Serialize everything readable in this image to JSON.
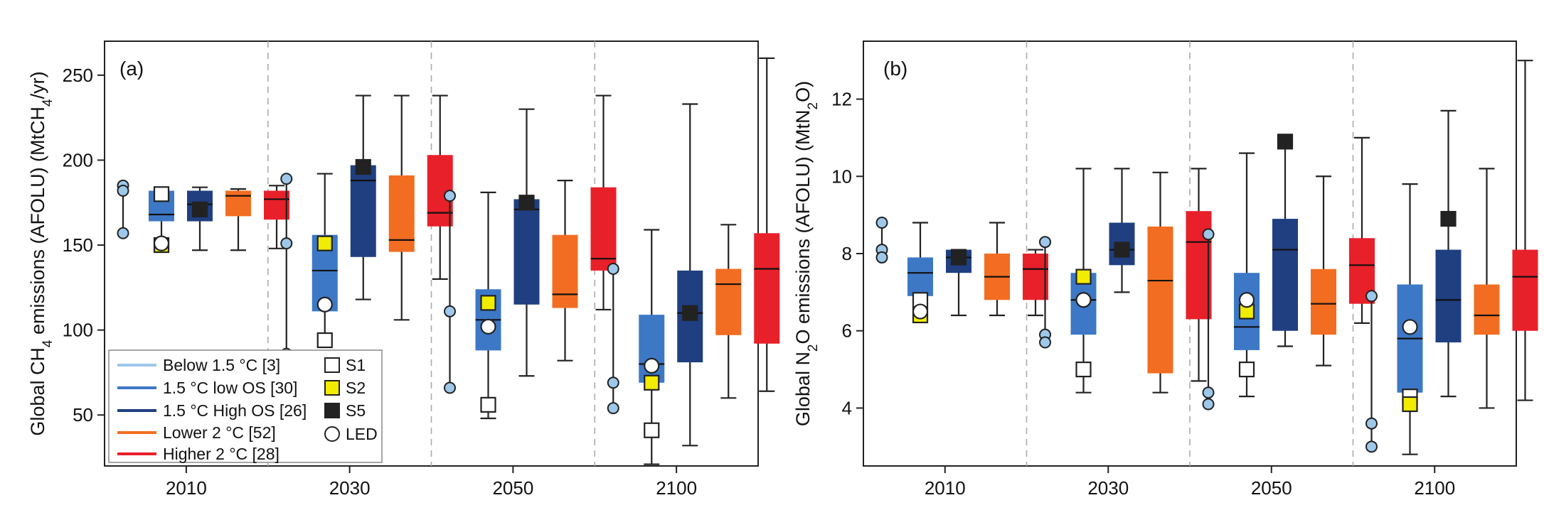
{
  "legend": {
    "series": [
      {
        "label": "Below 1.5 °C [3]",
        "color": "#9dc8ea"
      },
      {
        "label": "1.5 °C low OS [30]",
        "color": "#3d78c6"
      },
      {
        "label": "1.5 °C High OS [26]",
        "color": "#1f3f80"
      },
      {
        "label": "Lower  2 °C [52]",
        "color": "#f26d21"
      },
      {
        "label": "Higher  2 °C [28]",
        "color": "#e8202a"
      }
    ],
    "markers": [
      {
        "label": "S1",
        "marker": "square-open"
      },
      {
        "label": "S2",
        "marker": "square-yellow"
      },
      {
        "label": "S5",
        "marker": "square-black"
      },
      {
        "label": "LED",
        "marker": "circle-open"
      }
    ]
  },
  "chart_data": [
    {
      "type": "box",
      "panel_label": "(a)",
      "ylabel": "Global CH4 emissions (AFOLU) (MtCH4/yr)",
      "ylim": [
        20,
        270
      ],
      "yticks": [
        50,
        100,
        150,
        200,
        250
      ],
      "categories": [
        "2010",
        "2030",
        "2050",
        "2100"
      ],
      "series_order": [
        "Below 1.5 °C [3]",
        "1.5 °C low OS [30]",
        "1.5 °C High OS [26]",
        "Lower  2 °C [52]",
        "Higher  2 °C [28]"
      ],
      "groups": [
        {
          "year": "2010",
          "below15_points": [
            185,
            182,
            157
          ],
          "boxes": [
            {
              "series": "1.5 °C low OS [30]",
              "min": 150,
              "q1": 164,
              "median": 168,
              "q3": 182,
              "max": 182
            },
            {
              "series": "1.5 °C High OS [26]",
              "min": 147,
              "q1": 164,
              "median": 174,
              "q3": 182,
              "max": 184
            },
            {
              "series": "Lower  2 °C [52]",
              "min": 147,
              "q1": 167,
              "median": 179,
              "q3": 182,
              "max": 183
            },
            {
              "series": "Higher  2 °C [28]",
              "min": 148,
              "q1": 165,
              "median": 177,
              "q3": 182,
              "max": 185
            }
          ],
          "markers": [
            {
              "marker": "S1",
              "series": "1.5 °C low OS [30]",
              "value": 180
            },
            {
              "marker": "S2",
              "series": "1.5 °C low OS [30]",
              "value": 150
            },
            {
              "marker": "S5",
              "series": "1.5 °C High OS [26]",
              "value": 171
            },
            {
              "marker": "LED",
              "series": "1.5 °C low OS [30]",
              "value": 151
            }
          ]
        },
        {
          "year": "2030",
          "below15_points": [
            189,
            151,
            86
          ],
          "boxes": [
            {
              "series": "1.5 °C low OS [30]",
              "min": 93,
              "q1": 111,
              "median": 135,
              "q3": 156,
              "max": 192
            },
            {
              "series": "1.5 °C High OS [26]",
              "min": 118,
              "q1": 143,
              "median": 188,
              "q3": 197,
              "max": 238
            },
            {
              "series": "Lower  2 °C [52]",
              "min": 106,
              "q1": 146,
              "median": 153,
              "q3": 191,
              "max": 238
            },
            {
              "series": "Higher  2 °C [28]",
              "min": 130,
              "q1": 161,
              "median": 169,
              "q3": 203,
              "max": 238
            }
          ],
          "markers": [
            {
              "marker": "S1",
              "series": "1.5 °C low OS [30]",
              "value": 94
            },
            {
              "marker": "S2",
              "series": "1.5 °C low OS [30]",
              "value": 151
            },
            {
              "marker": "S5",
              "series": "1.5 °C High OS [26]",
              "value": 196
            },
            {
              "marker": "LED",
              "series": "1.5 °C low OS [30]",
              "value": 115
            }
          ]
        },
        {
          "year": "2050",
          "below15_points": [
            179,
            111,
            66
          ],
          "boxes": [
            {
              "series": "1.5 °C low OS [30]",
              "min": 48,
              "q1": 88,
              "median": 106,
              "q3": 124,
              "max": 181
            },
            {
              "series": "1.5 °C High OS [26]",
              "min": 73,
              "q1": 115,
              "median": 171,
              "q3": 177,
              "max": 230
            },
            {
              "series": "Lower  2 °C [52]",
              "min": 82,
              "q1": 113,
              "median": 121,
              "q3": 156,
              "max": 188
            },
            {
              "series": "Higher  2 °C [28]",
              "min": 112,
              "q1": 135,
              "median": 142,
              "q3": 184,
              "max": 238
            }
          ],
          "markers": [
            {
              "marker": "S1",
              "series": "1.5 °C low OS [30]",
              "value": 56
            },
            {
              "marker": "S2",
              "series": "1.5 °C low OS [30]",
              "value": 116
            },
            {
              "marker": "S5",
              "series": "1.5 °C High OS [26]",
              "value": 175
            },
            {
              "marker": "LED",
              "series": "1.5 °C low OS [30]",
              "value": 102
            }
          ]
        },
        {
          "year": "2100",
          "below15_points": [
            136,
            69,
            54
          ],
          "boxes": [
            {
              "series": "1.5 °C low OS [30]",
              "min": 21,
              "q1": 69,
              "median": 80,
              "q3": 109,
              "max": 159
            },
            {
              "series": "1.5 °C High OS [26]",
              "min": 32,
              "q1": 81,
              "median": 110,
              "q3": 135,
              "max": 233
            },
            {
              "series": "Lower  2 °C [52]",
              "min": 60,
              "q1": 97,
              "median": 127,
              "q3": 136,
              "max": 162
            },
            {
              "series": "Higher  2 °C [28]",
              "min": 64,
              "q1": 92,
              "median": 136,
              "q3": 157,
              "max": 260
            }
          ],
          "markers": [
            {
              "marker": "S1",
              "series": "1.5 °C low OS [30]",
              "value": 41
            },
            {
              "marker": "S2",
              "series": "1.5 °C low OS [30]",
              "value": 69
            },
            {
              "marker": "S5",
              "series": "1.5 °C High OS [26]",
              "value": 110
            },
            {
              "marker": "LED",
              "series": "1.5 °C low OS [30]",
              "value": 79
            }
          ]
        }
      ]
    },
    {
      "type": "box",
      "panel_label": "(b)",
      "ylabel": "Global N2O emissions (AFOLU) (MtN2O)",
      "ylim": [
        2.5,
        13.5
      ],
      "yticks": [
        4,
        6,
        8,
        10,
        12
      ],
      "categories": [
        "2010",
        "2030",
        "2050",
        "2100"
      ],
      "series_order": [
        "Below 1.5 °C [3]",
        "1.5 °C low OS [30]",
        "1.5 °C High OS [26]",
        "Lower  2 °C [52]",
        "Higher  2 °C [28]"
      ],
      "groups": [
        {
          "year": "2010",
          "below15_points": [
            8.8,
            8.1,
            7.9
          ],
          "boxes": [
            {
              "series": "1.5 °C low OS [30]",
              "min": 6.4,
              "q1": 6.9,
              "median": 7.5,
              "q3": 7.9,
              "max": 8.8
            },
            {
              "series": "1.5 °C High OS [26]",
              "min": 6.4,
              "q1": 7.5,
              "median": 7.9,
              "q3": 8.1,
              "max": 8.1
            },
            {
              "series": "Lower  2 °C [52]",
              "min": 6.4,
              "q1": 6.8,
              "median": 7.4,
              "q3": 8.0,
              "max": 8.8
            },
            {
              "series": "Higher  2 °C [28]",
              "min": 6.4,
              "q1": 6.8,
              "median": 7.6,
              "q3": 8.0,
              "max": 8.1
            }
          ],
          "markers": [
            {
              "marker": "S1",
              "series": "1.5 °C low OS [30]",
              "value": 6.8
            },
            {
              "marker": "S2",
              "series": "1.5 °C low OS [30]",
              "value": 6.4
            },
            {
              "marker": "S5",
              "series": "1.5 °C High OS [26]",
              "value": 7.9
            },
            {
              "marker": "LED",
              "series": "1.5 °C low OS [30]",
              "value": 6.5
            }
          ]
        },
        {
          "year": "2030",
          "below15_points": [
            8.3,
            5.9,
            5.7
          ],
          "boxes": [
            {
              "series": "1.5 °C low OS [30]",
              "min": 4.4,
              "q1": 5.9,
              "median": 6.8,
              "q3": 7.5,
              "max": 10.2
            },
            {
              "series": "1.5 °C High OS [26]",
              "min": 7.0,
              "q1": 7.7,
              "median": 8.1,
              "q3": 8.8,
              "max": 10.2
            },
            {
              "series": "Lower  2 °C [52]",
              "min": 4.4,
              "q1": 4.9,
              "median": 7.3,
              "q3": 8.7,
              "max": 10.1
            },
            {
              "series": "Higher  2 °C [28]",
              "min": 4.7,
              "q1": 6.3,
              "median": 8.3,
              "q3": 9.1,
              "max": 10.2
            }
          ],
          "markers": [
            {
              "marker": "S1",
              "series": "1.5 °C low OS [30]",
              "value": 5.0
            },
            {
              "marker": "S2",
              "series": "1.5 °C low OS [30]",
              "value": 7.4
            },
            {
              "marker": "S5",
              "series": "1.5 °C High OS [26]",
              "value": 8.1
            },
            {
              "marker": "LED",
              "series": "1.5 °C low OS [30]",
              "value": 6.8
            }
          ]
        },
        {
          "year": "2050",
          "below15_points": [
            8.5,
            4.4,
            4.1
          ],
          "boxes": [
            {
              "series": "1.5 °C low OS [30]",
              "min": 4.3,
              "q1": 5.5,
              "median": 6.1,
              "q3": 7.5,
              "max": 10.6
            },
            {
              "series": "1.5 °C High OS [26]",
              "min": 5.6,
              "q1": 6.0,
              "median": 8.1,
              "q3": 8.9,
              "max": 10.9
            },
            {
              "series": "Lower  2 °C [52]",
              "min": 5.1,
              "q1": 5.9,
              "median": 6.7,
              "q3": 7.6,
              "max": 10.0
            },
            {
              "series": "Higher  2 °C [28]",
              "min": 6.2,
              "q1": 6.7,
              "median": 7.7,
              "q3": 8.4,
              "max": 11.0
            }
          ],
          "markers": [
            {
              "marker": "S1",
              "series": "1.5 °C low OS [30]",
              "value": 5.0
            },
            {
              "marker": "S2",
              "series": "1.5 °C low OS [30]",
              "value": 6.5
            },
            {
              "marker": "S5",
              "series": "1.5 °C High OS [26]",
              "value": 10.9
            },
            {
              "marker": "LED",
              "series": "1.5 °C low OS [30]",
              "value": 6.8
            }
          ]
        },
        {
          "year": "2100",
          "below15_points": [
            6.9,
            3.6,
            3.0
          ],
          "boxes": [
            {
              "series": "1.5 °C low OS [30]",
              "min": 2.8,
              "q1": 4.4,
              "median": 5.8,
              "q3": 7.2,
              "max": 9.8
            },
            {
              "series": "1.5 °C High OS [26]",
              "min": 4.3,
              "q1": 5.7,
              "median": 6.8,
              "q3": 8.1,
              "max": 11.7
            },
            {
              "series": "Lower  2 °C [52]",
              "min": 4.0,
              "q1": 5.9,
              "median": 6.4,
              "q3": 7.2,
              "max": 10.2
            },
            {
              "series": "Higher  2 °C [28]",
              "min": 4.2,
              "q1": 6.0,
              "median": 7.4,
              "q3": 8.1,
              "max": 13.0
            }
          ],
          "markers": [
            {
              "marker": "S1",
              "series": "1.5 °C low OS [30]",
              "value": 4.3
            },
            {
              "marker": "S2",
              "series": "1.5 °C low OS [30]",
              "value": 4.1
            },
            {
              "marker": "S5",
              "series": "1.5 °C High OS [26]",
              "value": 8.9
            },
            {
              "marker": "LED",
              "series": "1.5 °C low OS [30]",
              "value": 6.1
            }
          ]
        }
      ]
    }
  ]
}
